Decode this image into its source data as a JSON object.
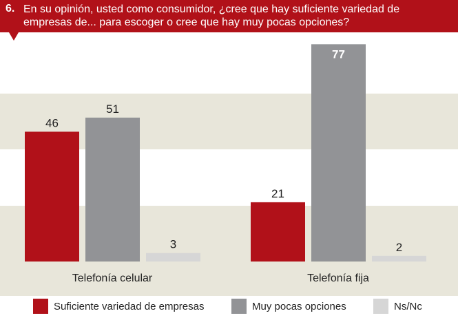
{
  "question": {
    "number": "6.",
    "text": "En su opinión, usted como consumidor, ¿cree que hay suficiente variedad de empresas de... para escoger o cree que hay muy pocas opciones?"
  },
  "colors": {
    "header": "#b11119",
    "suficiente": "#b11119",
    "muy_pocas": "#929396",
    "nsnc": "#d6d6d6",
    "band": "#e8e6da"
  },
  "chart_data": {
    "type": "bar",
    "title": "En su opinión, usted como consumidor, ¿cree que hay suficiente variedad de empresas de... para escoger o cree que hay muy pocas opciones?",
    "categories": [
      "Telefonía celular",
      "Telefonía fija"
    ],
    "series": [
      {
        "name": "Suficiente variedad de empresas",
        "values": [
          46,
          21
        ]
      },
      {
        "name": "Muy pocas opciones",
        "values": [
          51,
          77
        ]
      },
      {
        "name": "Ns/Nc",
        "values": [
          3,
          2
        ]
      }
    ],
    "ylim": [
      0,
      80
    ],
    "grid": "alternating horizontal bands",
    "legend": "bottom"
  }
}
